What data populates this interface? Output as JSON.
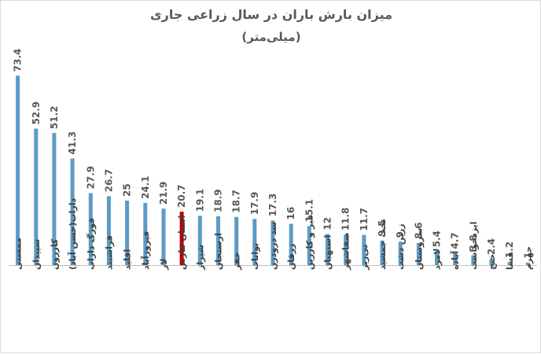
{
  "chart_data": {
    "type": "bar",
    "title": "میزان بارش باران در سال زراعی جاری",
    "subtitle": "(میلی‌متر)",
    "categories": [
      "ممسنی",
      "سپیدان",
      "کازرون",
      "داراب(حسن آباد)",
      "فورگ داراب",
      "فراشبند",
      "اقلید",
      "فیروزآباد",
      "لار",
      "استان فارس",
      "شیراز",
      "ارسنجان",
      "خفر",
      "بوانات",
      "سد درودزن",
      "زرقان",
      "قیر و کارزین",
      "استهبان",
      "صفاشهر",
      "نی‌ریز",
      "تخت جمشید",
      "زرین دشت",
      "سروستان",
      "لامرد",
      "آباده",
      "ایزدخواست",
      "خنج",
      "فسا",
      "جهرم"
    ],
    "values": [
      73.4,
      52.9,
      51.2,
      41.3,
      27.9,
      26.7,
      25,
      24.1,
      21.9,
      20.7,
      19.1,
      18.9,
      18.7,
      17.9,
      17.3,
      16,
      15.1,
      12,
      11.8,
      11.7,
      9.5,
      9,
      8.6,
      5.4,
      4.7,
      3.8,
      2.4,
      1.2,
      1
    ],
    "highlight_category": "استان فارس",
    "colors": {
      "bar": "#5b9bc6",
      "highlight": "#c00000",
      "axis": "#bfbfbf"
    },
    "ylim": [
      0,
      75
    ],
    "grid": false,
    "legend": "none"
  }
}
